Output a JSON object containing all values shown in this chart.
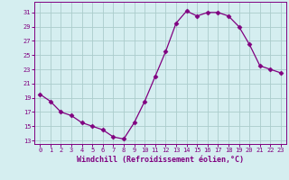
{
  "hours": [
    0,
    1,
    2,
    3,
    4,
    5,
    6,
    7,
    8,
    9,
    10,
    11,
    12,
    13,
    14,
    15,
    16,
    17,
    18,
    19,
    20,
    21,
    22,
    23
  ],
  "windchill": [
    19.5,
    18.5,
    17.0,
    16.5,
    15.5,
    15.0,
    14.5,
    13.5,
    13.2,
    15.5,
    18.5,
    22.0,
    25.5,
    29.5,
    31.2,
    30.5,
    31.0,
    31.0,
    30.5,
    29.0,
    26.5,
    23.5,
    23.0,
    22.5
  ],
  "line_color": "#800080",
  "marker": "D",
  "marker_size": 2.5,
  "bg_color": "#d5eef0",
  "grid_color": "#aacccc",
  "xlabel": "Windchill (Refroidissement éolien,°C)",
  "ylabel_ticks": [
    13,
    15,
    17,
    19,
    21,
    23,
    25,
    27,
    29,
    31
  ],
  "xlim": [
    -0.5,
    23.5
  ],
  "ylim": [
    12.5,
    32.5
  ],
  "xticks": [
    0,
    1,
    2,
    3,
    4,
    5,
    6,
    7,
    8,
    9,
    10,
    11,
    12,
    13,
    14,
    15,
    16,
    17,
    18,
    19,
    20,
    21,
    22,
    23
  ]
}
